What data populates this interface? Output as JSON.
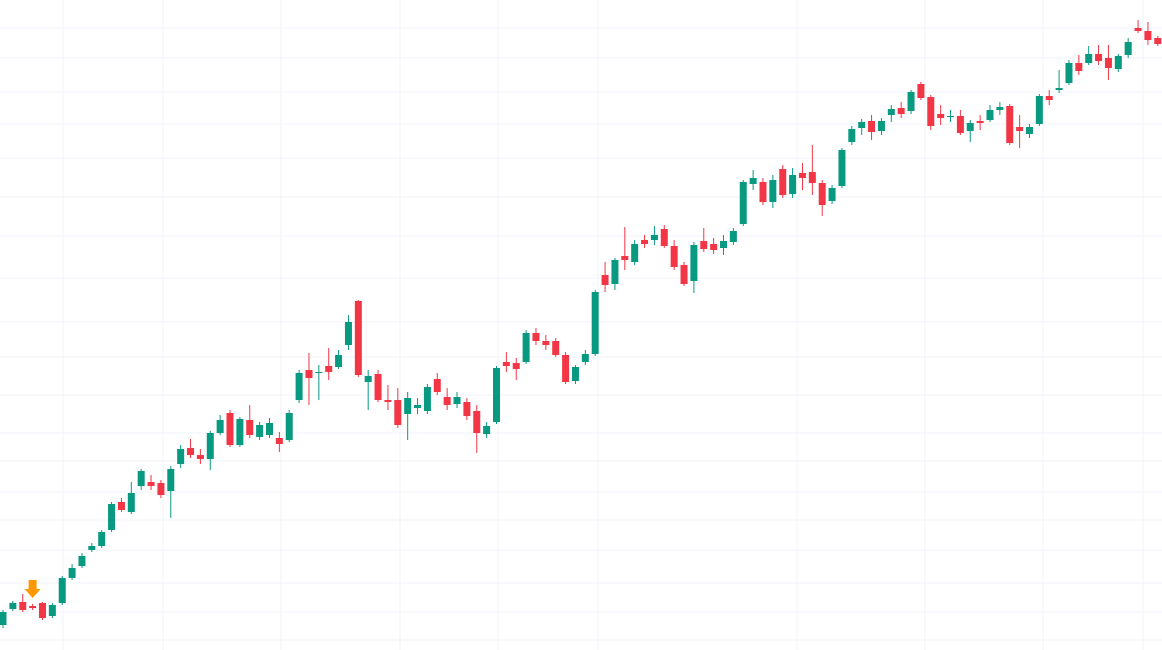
{
  "chart_data": {
    "type": "candlestick",
    "ylim": [
      0,
      650
    ],
    "ygrid": [
      622,
      592,
      558,
      526,
      492,
      453,
      414,
      372,
      328,
      293,
      255,
      217,
      189,
      158,
      130,
      100,
      67,
      38,
      10
    ],
    "xgrid": [
      6.08,
      16.21,
      28.17,
      40.22,
      50.15,
      60.28,
      80.45,
      93.41,
      105.37,
      115.5
    ],
    "grid": true,
    "up_color": "#089981",
    "down_color": "#f23645",
    "grid_color": "#f0f3fa",
    "marker": {
      "index": 3,
      "color": "#ff9800"
    },
    "open": [
      25,
      41,
      48,
      44,
      47,
      34,
      47,
      72,
      84,
      100,
      104,
      120,
      148,
      138,
      164,
      168,
      167,
      159,
      186,
      202,
      195,
      191,
      217,
      237,
      205,
      230,
      213,
      215,
      212,
      210,
      250,
      280,
      277,
      284,
      283,
      305,
      349,
      268,
      276,
      250,
      250,
      236,
      242,
      239,
      271,
      253,
      246,
      248,
      239,
      216,
      228,
      288,
      287,
      288,
      317,
      309,
      309,
      295,
      269,
      288,
      296,
      375,
      366,
      394,
      388,
      410,
      410,
      421,
      404,
      385,
      369,
      409,
      406,
      402,
      408,
      426,
      466,
      468,
      448,
      481,
      456,
      477,
      478,
      467,
      449,
      464,
      508,
      522,
      529,
      519,
      535,
      542,
      539,
      566,
      553,
      536,
      533,
      534,
      519,
      529,
      530,
      540,
      544,
      523,
      516,
      526,
      554,
      560,
      567,
      587,
      587,
      596,
      592,
      581,
      595,
      622,
      619,
      612
    ],
    "high": [
      40,
      49,
      56,
      46,
      48,
      47,
      74,
      86,
      97,
      107,
      120,
      148,
      152,
      168,
      181,
      175,
      170,
      184,
      205,
      211,
      201,
      219,
      235,
      240,
      233,
      245,
      228,
      232,
      218,
      240,
      280,
      297,
      285,
      302,
      300,
      335,
      350,
      280,
      280,
      265,
      262,
      258,
      252,
      266,
      277,
      262,
      258,
      252,
      245,
      228,
      284,
      298,
      292,
      320,
      322,
      315,
      312,
      298,
      285,
      300,
      360,
      388,
      392,
      423,
      410,
      415,
      424,
      425,
      410,
      388,
      408,
      422,
      412,
      415,
      422,
      470,
      480,
      472,
      475,
      485,
      482,
      487,
      505,
      470,
      465,
      502,
      524,
      531,
      535,
      532,
      545,
      548,
      560,
      568,
      555,
      545,
      540,
      540,
      530,
      535,
      545,
      548,
      546,
      535,
      526,
      556,
      560,
      580,
      590,
      595,
      604,
      605,
      605,
      596,
      612,
      630,
      628,
      614
    ],
    "low": [
      22,
      39,
      38,
      40,
      30,
      32,
      45,
      70,
      82,
      98,
      102,
      118,
      138,
      136,
      160,
      160,
      152,
      132,
      182,
      192,
      186,
      180,
      215,
      203,
      203,
      212,
      210,
      212,
      198,
      208,
      247,
      245,
      250,
      270,
      281,
      300,
      273,
      240,
      248,
      240,
      222,
      210,
      236,
      236,
      255,
      240,
      242,
      230,
      197,
      212,
      226,
      278,
      270,
      286,
      305,
      300,
      293,
      266,
      266,
      285,
      294,
      358,
      360,
      380,
      385,
      402,
      405,
      402,
      380,
      364,
      357,
      398,
      396,
      395,
      405,
      424,
      460,
      445,
      442,
      452,
      452,
      460,
      455,
      434,
      446,
      462,
      505,
      515,
      510,
      515,
      528,
      532,
      536,
      550,
      520,
      525,
      528,
      515,
      508,
      520,
      528,
      535,
      505,
      502,
      512,
      524,
      545,
      557,
      565,
      575,
      585,
      585,
      570,
      578,
      592,
      617,
      605,
      604
    ],
    "close": [
      38,
      47,
      40,
      42,
      32,
      45,
      72,
      82,
      94,
      104,
      118,
      146,
      140,
      157,
      179,
      164,
      155,
      181,
      201,
      195,
      191,
      217,
      230,
      205,
      231,
      215,
      225,
      227,
      206,
      237,
      277,
      272,
      278,
      278,
      295,
      328,
      275,
      274,
      250,
      248,
      225,
      252,
      245,
      263,
      258,
      245,
      253,
      234,
      217,
      224,
      282,
      284,
      281,
      317,
      309,
      305,
      295,
      268,
      283,
      296,
      358,
      365,
      390,
      390,
      406,
      406,
      415,
      404,
      383,
      366,
      405,
      401,
      400,
      409,
      419,
      468,
      472,
      448,
      470,
      455,
      475,
      472,
      467,
      445,
      462,
      500,
      521,
      528,
      518,
      529,
      541,
      536,
      558,
      552,
      524,
      532,
      534,
      517,
      527,
      527,
      540,
      543,
      507,
      519,
      523,
      554,
      550,
      562,
      587,
      579,
      596,
      589,
      582,
      594,
      608,
      619,
      610,
      606
    ]
  }
}
